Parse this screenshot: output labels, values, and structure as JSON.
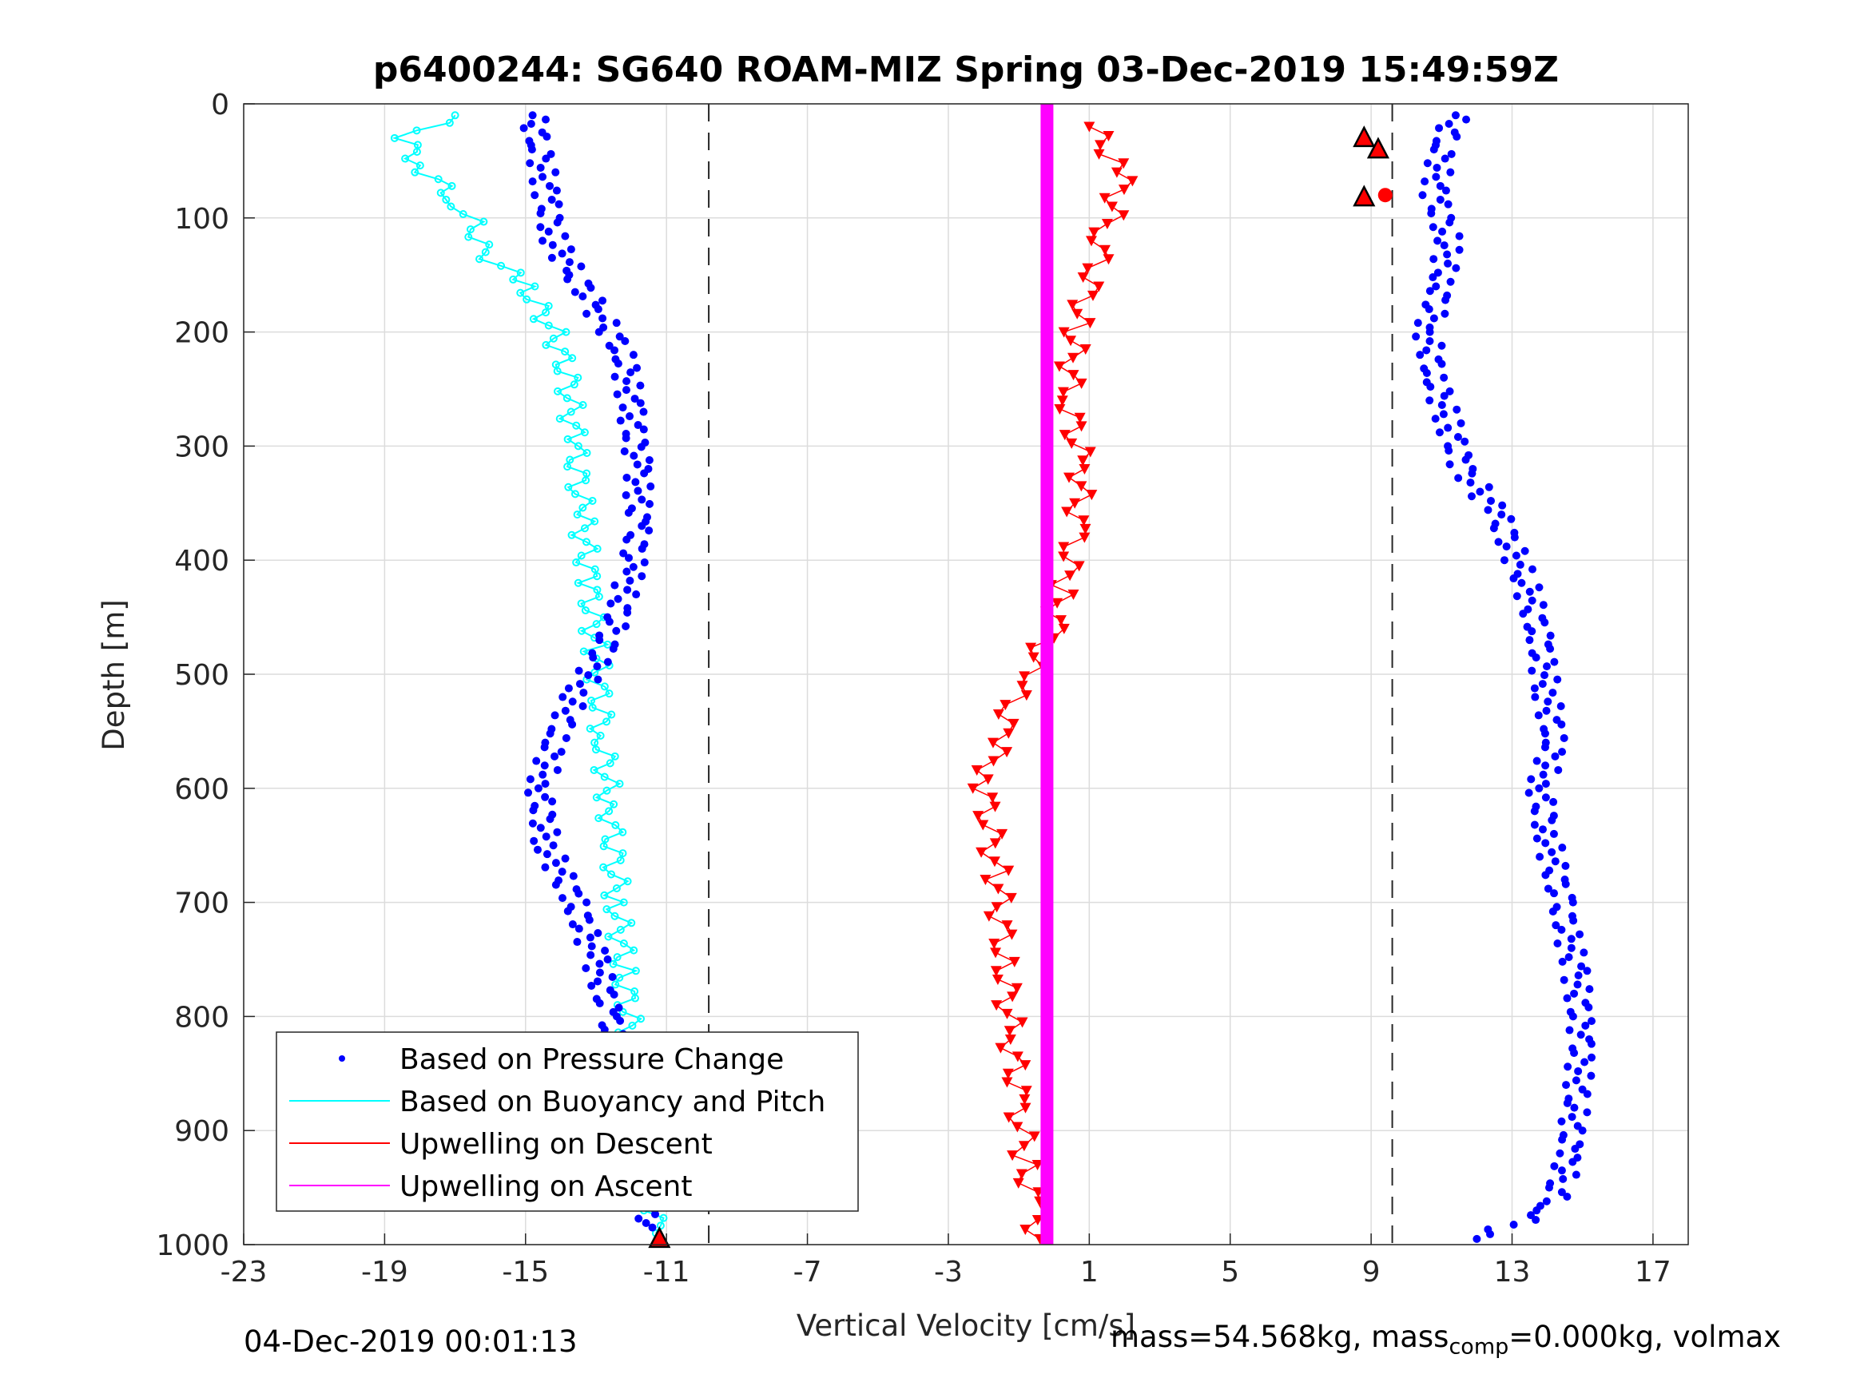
{
  "chart_data": {
    "type": "scatter",
    "title": "p6400244: SG640 ROAM-MIZ Spring 03-Dec-2019 15:49:59Z",
    "xlabel": "Vertical Velocity [cm/s]",
    "ylabel": "Depth [m]",
    "xlim": [
      -23,
      18
    ],
    "ylim": [
      1000,
      0
    ],
    "y_reversed": true,
    "grid": true,
    "x_ticks": [
      "-23",
      "-19",
      "-15",
      "-11",
      "-7",
      "-3",
      "1",
      "5",
      "9",
      "13",
      "17"
    ],
    "y_ticks": [
      "0",
      "100",
      "200",
      "300",
      "400",
      "500",
      "600",
      "700",
      "800",
      "900",
      "1000"
    ],
    "legend_position": "bottom-left",
    "reference_lines": [
      -9.8,
      9.6
    ],
    "series": [
      {
        "name": "Based on Pressure Change",
        "color": "#0000ff",
        "marker": "dot",
        "profiles": [
          {
            "leg": "descent",
            "x": [
              -14.8,
              -14.6,
              -14.4,
              -14.2,
              -13.6,
              -13.0,
              -12.2,
              -12.0,
              -11.8,
              -11.8,
              -12.0,
              -12.6,
              -13.6,
              -14.2,
              -14.6,
              -14.4,
              -13.6,
              -13.0,
              -12.6,
              -12.4,
              -12.2,
              -11.8,
              -11.4
            ],
            "y": [
              10,
              40,
              80,
              120,
              150,
              180,
              220,
              270,
              320,
              370,
              410,
              470,
              520,
              560,
              600,
              650,
              700,
              750,
              800,
              850,
              900,
              950,
              985
            ]
          },
          {
            "leg": "ascent",
            "x": [
              11.4,
              11.0,
              10.8,
              11.2,
              11.0,
              10.6,
              10.8,
              11.2,
              11.6,
              12.6,
              13.4,
              13.8,
              14.0,
              14.2,
              13.8,
              14.0,
              14.4,
              14.8,
              15.0,
              14.8,
              14.6,
              14.4,
              14.0,
              12.0
            ],
            "y": [
              10,
              40,
              80,
              120,
              160,
              200,
              240,
              280,
              320,
              360,
              420,
              470,
              520,
              560,
              600,
              640,
              700,
              760,
              820,
              880,
              920,
              950,
              970,
              995
            ]
          }
        ]
      },
      {
        "name": "Based on Buoyancy and Pitch",
        "color": "#00ffff",
        "marker": "line-circle",
        "x": [
          -17.0,
          -18.5,
          -17.8,
          -16.8,
          -16.4,
          -16.2,
          -15.0,
          -14.2,
          -13.8,
          -13.6,
          -13.4,
          -13.2,
          -13.0,
          -12.8,
          -12.6,
          -12.4,
          -12.2,
          -12.0,
          -11.8,
          -11.6,
          -11.4,
          -11.3
        ],
        "y": [
          10,
          30,
          60,
          90,
          110,
          130,
          160,
          200,
          240,
          300,
          360,
          420,
          480,
          560,
          620,
          700,
          760,
          820,
          880,
          940,
          970,
          990
        ]
      },
      {
        "name": "Upwelling on Descent",
        "color": "#ff0000",
        "marker": "triangle-down",
        "x": [
          1.0,
          2.0,
          1.4,
          0.6,
          0.4,
          0.8,
          0.6,
          0.2,
          0.0,
          -1.0,
          -1.6,
          -2.0,
          -1.6,
          -1.4,
          -1.2,
          -1.0,
          -0.8,
          -0.6,
          -0.4
        ],
        "y": [
          20,
          60,
          120,
          200,
          260,
          320,
          380,
          430,
          460,
          510,
          560,
          600,
          680,
          760,
          820,
          880,
          930,
          970,
          995
        ]
      },
      {
        "name": "Upwelling on Ascent",
        "color": "#ff00ff",
        "marker": "line",
        "x": [
          -0.2,
          -0.2
        ],
        "y": [
          0,
          1000
        ]
      }
    ],
    "markers": [
      {
        "shape": "triangle-up",
        "x": -11.2,
        "y": 995
      },
      {
        "shape": "triangle-up",
        "x": 8.8,
        "y": 30
      },
      {
        "shape": "triangle-up",
        "x": 9.2,
        "y": 40
      },
      {
        "shape": "triangle-up",
        "x": 8.8,
        "y": 82
      },
      {
        "shape": "dot",
        "x": 9.4,
        "y": 80
      }
    ]
  },
  "footer": {
    "timestamp": "04-Dec-2019 00:01:13",
    "mass_text": "mass=54.568kg, mass",
    "mass_sub": "comp",
    "mass_rest": "=0.000kg, volmax"
  }
}
